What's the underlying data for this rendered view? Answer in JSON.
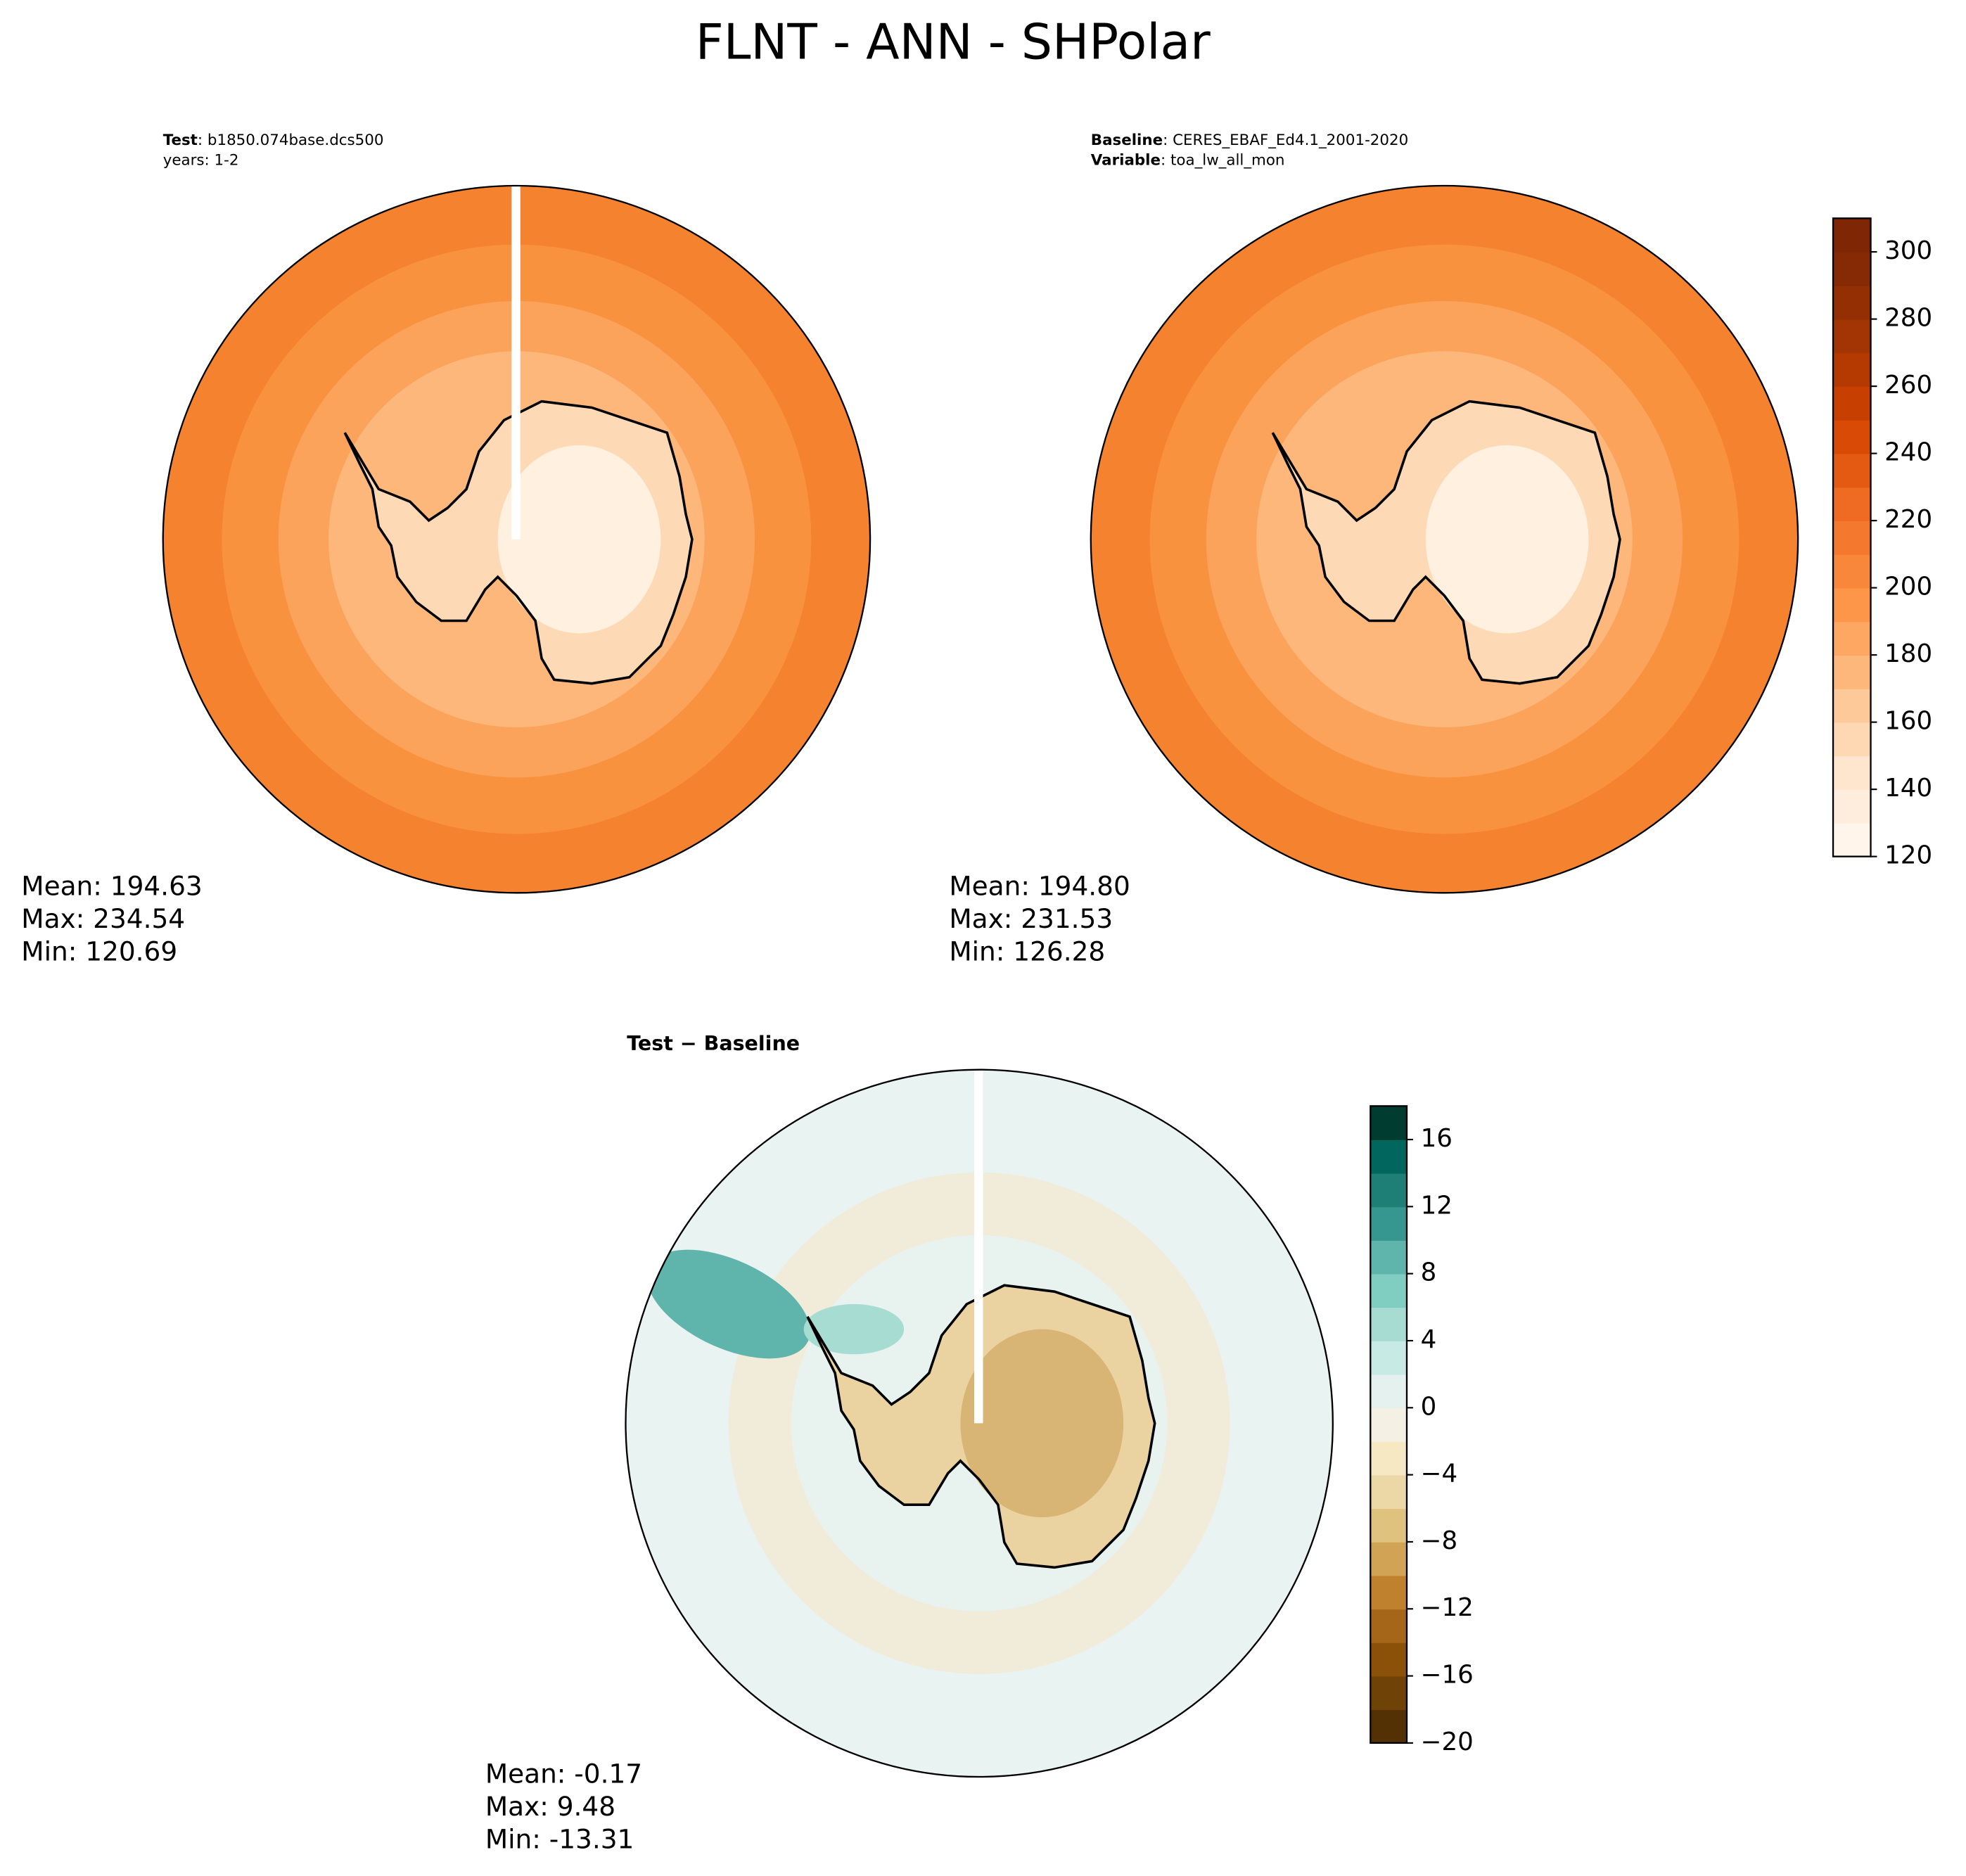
{
  "title": "FLNT - ANN - SHPolar",
  "chart_data": [
    {
      "type": "contour-map",
      "header": [
        {
          "bold": "Test",
          "text": ": b1850.074base.dcs500"
        },
        {
          "text": "years: 1-2"
        }
      ],
      "stats": [
        "Mean: 194.63",
        "Max: 234.54",
        "Min: 120.69"
      ]
    },
    {
      "type": "contour-map",
      "header": [
        {
          "bold": "Baseline",
          "text": ": CERES_EBAF_Ed4.1_2001-2020"
        },
        {
          "bold": "Variable",
          "text": ": toa_lw_all_mon"
        }
      ],
      "stats": [
        "Mean: 194.80",
        "Max: 231.53",
        "Min: 126.28"
      ]
    },
    {
      "type": "colorbar",
      "ylim": [
        120,
        310
      ],
      "yticks": [
        120,
        140,
        160,
        180,
        200,
        220,
        240,
        260,
        280,
        300
      ],
      "colors": [
        "#fff5eb",
        "#feeddc",
        "#fee6ce",
        "#fdd8b3",
        "#fdc998",
        "#fdb77a",
        "#fda762",
        "#fd9649",
        "#f8863b",
        "#f4782e",
        "#ef6a22",
        "#e55a13",
        "#da4a07",
        "#c84001",
        "#b53a02",
        "#a33403",
        "#932f03",
        "#852a04",
        "#7f2704"
      ]
    },
    {
      "type": "contour-map",
      "header": [
        {
          "bold": "Test − Baseline"
        }
      ],
      "stats": [
        "Mean: -0.17",
        "Max:  9.48",
        "Min: -13.31"
      ]
    },
    {
      "type": "colorbar",
      "ylim": [
        -20,
        18
      ],
      "yticks": [
        {
          "value": -20,
          "label": "−20"
        },
        {
          "value": -16,
          "label": "−16"
        },
        {
          "value": -12,
          "label": "−12"
        },
        {
          "value": -8,
          "label": "−8"
        },
        {
          "value": -4,
          "label": "−4"
        },
        0,
        4,
        8,
        12,
        16
      ],
      "colors": [
        "#543005",
        "#6f4207",
        "#8c5109",
        "#a6661a",
        "#bf812d",
        "#d0a355",
        "#dfc27d",
        "#ecd7a7",
        "#f6e8c3",
        "#f5f0e4",
        "#e4f1ef",
        "#c7eae5",
        "#a6dcd2",
        "#80cdc1",
        "#5fb5ab",
        "#35978f",
        "#1e7f77",
        "#01665e",
        "#003c30"
      ]
    }
  ]
}
